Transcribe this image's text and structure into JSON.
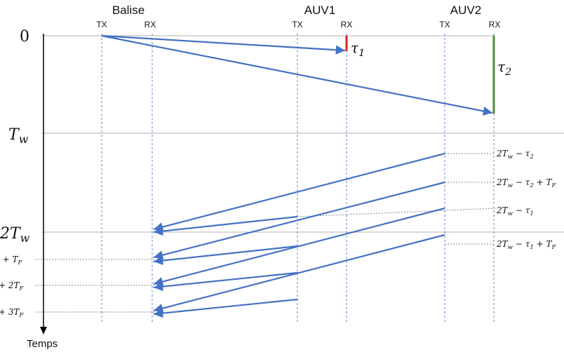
{
  "nodes": {
    "balise": {
      "title": "Balise",
      "tx": "TX",
      "rx": "RX"
    },
    "auv1": {
      "title": "AUV1",
      "tx": "TX",
      "rx": "RX"
    },
    "auv2": {
      "title": "AUV2",
      "tx": "TX",
      "rx": "RX"
    }
  },
  "time_axis": {
    "title": "Temps",
    "label_zero": "0",
    "label_tw_base": "T",
    "label_tw_sub": "w",
    "label_2tw_base": "2T",
    "label_2tw_sub": "w",
    "left_cut_1": ", + T",
    "left_cut_1_sub": "F",
    "left_cut_2": "+ 2T",
    "left_cut_2_sub": "F",
    "left_cut_3": "+ 3T",
    "left_cut_3_sub": "F"
  },
  "delays": {
    "tau1_base": "τ",
    "tau1_sub": "1",
    "tau2_base": "τ",
    "tau2_sub": "2"
  },
  "right_labels": {
    "r1": {
      "a": "2T",
      "a_sub": "w",
      "b": " − τ",
      "b_sub": "2",
      "c": "",
      "c_sub": ""
    },
    "r2": {
      "a": "2T",
      "a_sub": "w",
      "b": " − τ",
      "b_sub": "2",
      "c": " + T",
      "c_sub": "F"
    },
    "r3": {
      "a": "2T",
      "a_sub": "w",
      "b": " − τ",
      "b_sub": "1",
      "c": "",
      "c_sub": ""
    },
    "r4": {
      "a": "2T",
      "a_sub": "w",
      "b": " − τ",
      "b_sub": "1",
      "c": " + T",
      "c_sub": "F"
    }
  },
  "colors": {
    "arrow": "#4472c4",
    "tau1_bar": "#e02020",
    "tau2_bar": "#4f8a3a",
    "grid": "#b0b0b0",
    "lane": "#6b7fd0"
  }
}
